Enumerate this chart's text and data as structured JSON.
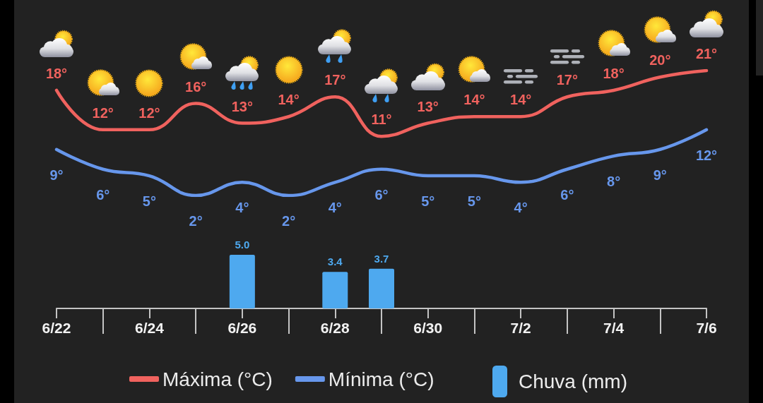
{
  "chart_data": [
    {
      "type": "line",
      "categories": [
        null,
        null,
        null,
        null,
        null,
        null,
        null,
        null,
        null,
        null,
        null,
        null,
        null,
        null,
        null
      ],
      "series": [
        {
          "name": "Máxima (°C)",
          "color": "#f0625e",
          "values": [
            18,
            12,
            12,
            16,
            13,
            14,
            17,
            11,
            13,
            14,
            14,
            17,
            18,
            20,
            21
          ],
          "value_labels": [
            "18°",
            "12°",
            "12°",
            "16°",
            "13°",
            "14°",
            "17°",
            "11°",
            "13°",
            "14°",
            "14°",
            "17°",
            "18°",
            "20°",
            "21°"
          ]
        },
        {
          "name": "Mínima (°C)",
          "color": "#6797ec",
          "values": [
            9,
            6,
            5,
            2,
            4,
            2,
            4,
            6,
            5,
            5,
            4,
            6,
            8,
            9,
            12
          ],
          "value_labels": [
            "9°",
            "6°",
            "5°",
            "2°",
            "4°",
            "2°",
            "4°",
            "6°",
            "5°",
            "5°",
            "4°",
            "6°",
            "8°",
            "9°",
            "12°"
          ]
        }
      ],
      "legend": "bottom",
      "tick_labels": false
    },
    {
      "type": "bar",
      "categories": [
        "6/22",
        null,
        "6/24",
        null,
        "6/26",
        null,
        "6/28",
        null,
        "6/30",
        null,
        "7/2",
        null,
        "7/4",
        null,
        "7/6"
      ],
      "series": [
        {
          "name": "Chuva (mm)",
          "color": "#4ea9ef",
          "values": [
            null,
            null,
            null,
            null,
            5.0,
            null,
            3.4,
            3.7,
            null,
            null,
            null,
            null,
            null,
            null,
            null
          ],
          "value_labels": [
            null,
            null,
            null,
            null,
            "5.0",
            null,
            "3.4",
            "3.7",
            null,
            null,
            null,
            null,
            null,
            null,
            null
          ]
        }
      ],
      "legend": "bottom",
      "tick_labels": "x"
    }
  ]
}
